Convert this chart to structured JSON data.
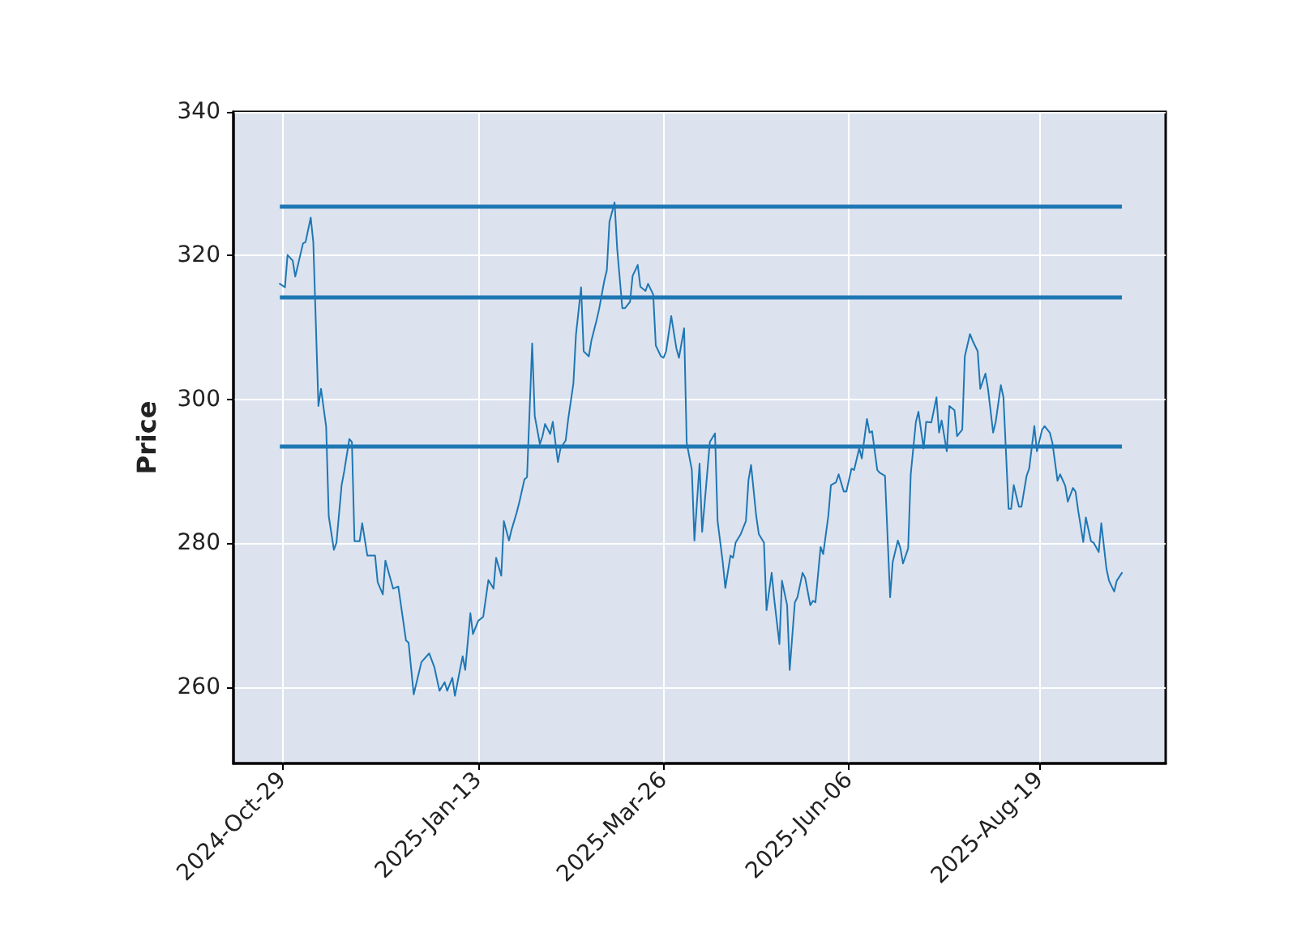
{
  "chart_data": {
    "type": "line",
    "ylabel": "Price",
    "grid": true,
    "marker": "none",
    "line_style": "solid",
    "xlim": [
      "2024-10-10",
      "2025-10-07"
    ],
    "ylim": [
      249.4,
      340
    ],
    "yticks": [
      260,
      280,
      300,
      320,
      340
    ],
    "xticks": [
      {
        "value": "2024-10-29",
        "label": "2024-Oct-29"
      },
      {
        "value": "2025-01-13",
        "label": "2025-Jan-13"
      },
      {
        "value": "2025-03-26",
        "label": "2025-Mar-26"
      },
      {
        "value": "2025-06-06",
        "label": "2025-Jun-06"
      },
      {
        "value": "2025-08-19",
        "label": "2025-Aug-19"
      }
    ],
    "ref_lines": [
      {
        "axis": "y",
        "value": 326.9,
        "color": "#1f77b4"
      },
      {
        "axis": "y",
        "value": 314.2,
        "color": "#1f77b4"
      },
      {
        "axis": "y",
        "value": 293.6,
        "color": "#1f77b4"
      }
    ],
    "series": [
      {
        "color": "#1f77b4",
        "x": [
          "2024-10-28",
          "2024-10-30",
          "2024-10-31",
          "2024-11-02",
          "2024-11-03",
          "2024-11-06",
          "2024-11-07",
          "2024-11-09",
          "2024-11-10",
          "2024-11-12",
          "2024-11-13",
          "2024-11-15",
          "2024-11-16",
          "2024-11-18",
          "2024-11-19",
          "2024-11-21",
          "2024-11-22",
          "2024-11-24",
          "2024-11-25",
          "2024-11-26",
          "2024-11-28",
          "2024-11-29",
          "2024-12-01",
          "2024-12-04",
          "2024-12-05",
          "2024-12-07",
          "2024-12-08",
          "2024-12-11",
          "2024-12-13",
          "2024-12-16",
          "2024-12-17",
          "2024-12-19",
          "2024-12-22",
          "2024-12-25",
          "2024-12-27",
          "2024-12-29",
          "2024-12-31",
          "2025-01-01",
          "2025-01-03",
          "2025-01-04",
          "2025-01-06",
          "2025-01-07",
          "2025-01-08",
          "2025-01-10",
          "2025-01-11",
          "2025-01-13",
          "2025-01-15",
          "2025-01-17",
          "2025-01-19",
          "2025-01-20",
          "2025-01-22",
          "2025-01-23",
          "2025-01-25",
          "2025-01-26",
          "2025-01-28",
          "2025-01-29",
          "2025-01-31",
          "2025-02-01",
          "2025-02-03",
          "2025-02-04",
          "2025-02-06",
          "2025-02-07",
          "2025-02-08",
          "2025-02-10",
          "2025-02-11",
          "2025-02-13",
          "2025-02-14",
          "2025-02-16",
          "2025-02-17",
          "2025-02-19",
          "2025-02-20",
          "2025-02-22",
          "2025-02-23",
          "2025-02-25",
          "2025-02-26",
          "2025-02-28",
          "2025-03-01",
          "2025-03-03",
          "2025-03-04",
          "2025-03-05",
          "2025-03-07",
          "2025-03-08",
          "2025-03-10",
          "2025-03-11",
          "2025-03-13",
          "2025-03-14",
          "2025-03-16",
          "2025-03-17",
          "2025-03-19",
          "2025-03-20",
          "2025-03-22",
          "2025-03-23",
          "2025-03-25",
          "2025-03-26",
          "2025-03-27",
          "2025-03-29",
          "2025-03-31",
          "2025-04-01",
          "2025-04-03",
          "2025-04-04",
          "2025-04-06",
          "2025-04-07",
          "2025-04-09",
          "2025-04-10",
          "2025-04-11",
          "2025-04-13",
          "2025-04-15",
          "2025-04-16",
          "2025-04-18",
          "2025-04-19",
          "2025-04-21",
          "2025-04-22",
          "2025-04-23",
          "2025-04-25",
          "2025-04-27",
          "2025-04-28",
          "2025-04-29",
          "2025-05-01",
          "2025-05-02",
          "2025-05-04",
          "2025-05-05",
          "2025-05-07",
          "2025-05-08",
          "2025-05-10",
          "2025-05-11",
          "2025-05-13",
          "2025-05-14",
          "2025-05-16",
          "2025-05-17",
          "2025-05-19",
          "2025-05-20",
          "2025-05-22",
          "2025-05-23",
          "2025-05-24",
          "2025-05-26",
          "2025-05-27",
          "2025-05-29",
          "2025-05-30",
          "2025-06-01",
          "2025-06-02",
          "2025-06-04",
          "2025-06-05",
          "2025-06-07",
          "2025-06-08",
          "2025-06-10",
          "2025-06-11",
          "2025-06-13",
          "2025-06-14",
          "2025-06-15",
          "2025-06-17",
          "2025-06-18",
          "2025-06-20",
          "2025-06-22",
          "2025-06-23",
          "2025-06-25",
          "2025-06-26",
          "2025-06-27",
          "2025-06-29",
          "2025-06-30",
          "2025-07-02",
          "2025-07-03",
          "2025-07-05",
          "2025-07-06",
          "2025-07-08",
          "2025-07-10",
          "2025-07-11",
          "2025-07-12",
          "2025-07-14",
          "2025-07-15",
          "2025-07-17",
          "2025-07-18",
          "2025-07-20",
          "2025-07-21",
          "2025-07-23",
          "2025-07-24",
          "2025-07-26",
          "2025-07-27",
          "2025-07-29",
          "2025-07-30",
          "2025-08-01",
          "2025-08-02",
          "2025-08-04",
          "2025-08-05",
          "2025-08-07",
          "2025-08-08",
          "2025-08-09",
          "2025-08-11",
          "2025-08-12",
          "2025-08-14",
          "2025-08-15",
          "2025-08-17",
          "2025-08-18",
          "2025-08-20",
          "2025-08-21",
          "2025-08-23",
          "2025-08-24",
          "2025-08-26",
          "2025-08-27",
          "2025-08-29",
          "2025-08-30",
          "2025-09-01",
          "2025-09-02",
          "2025-09-03",
          "2025-09-05",
          "2025-09-06",
          "2025-09-08",
          "2025-09-09",
          "2025-09-11",
          "2025-09-12",
          "2025-09-14",
          "2025-09-15",
          "2025-09-17",
          "2025-09-18",
          "2025-09-20"
        ],
        "values": [
          316.1,
          315.6,
          320.1,
          319.3,
          317.1,
          321.7,
          321.9,
          325.3,
          321.9,
          299.1,
          301.5,
          296.2,
          283.8,
          279.1,
          280.1,
          288.1,
          290.0,
          294.5,
          294.1,
          280.3,
          280.3,
          282.8,
          278.3,
          278.3,
          274.6,
          272.9,
          277.6,
          273.7,
          274.0,
          266.5,
          266.2,
          259.0,
          263.5,
          264.7,
          262.8,
          259.5,
          260.7,
          259.5,
          261.3,
          258.8,
          262.5,
          264.3,
          262.4,
          270.3,
          267.4,
          269.2,
          269.8,
          274.9,
          273.7,
          278.0,
          275.5,
          283.1,
          280.4,
          281.9,
          284.3,
          285.7,
          288.9,
          289.2,
          307.8,
          297.7,
          293.8,
          294.9,
          296.6,
          295.2,
          296.9,
          291.3,
          293.2,
          294.3,
          297.3,
          302.2,
          309.0,
          315.6,
          306.7,
          306.0,
          308.2,
          311.0,
          312.6,
          316.5,
          318.0,
          324.7,
          327.4,
          321.0,
          312.7,
          312.7,
          313.6,
          317.2,
          318.7,
          315.7,
          315.1,
          316.1,
          314.6,
          307.5,
          306.0,
          305.8,
          306.7,
          311.6,
          307.1,
          305.8,
          309.9,
          294.0,
          290.2,
          280.4,
          291.1,
          281.6,
          285.7,
          294.1,
          295.3,
          283.1,
          277.4,
          273.8,
          278.3,
          278.0,
          280.1,
          281.3,
          283.1,
          288.8,
          290.9,
          283.8,
          281.3,
          280.1,
          270.7,
          275.9,
          272.2,
          266.0,
          274.8,
          271.4,
          262.4,
          271.8,
          272.5,
          275.9,
          275.2,
          271.4,
          272.0,
          271.8,
          279.5,
          278.5,
          283.8,
          288.1,
          288.5,
          289.6,
          287.2,
          287.2,
          290.4,
          290.2,
          293.2,
          291.8,
          297.3,
          295.4,
          295.6,
          290.2,
          289.8,
          289.4,
          272.5,
          277.4,
          280.4,
          279.3,
          277.2,
          279.3,
          289.6,
          296.9,
          298.3,
          293.2,
          296.9,
          296.8,
          300.3,
          295.4,
          297.1,
          292.8,
          299.1,
          298.5,
          294.9,
          295.8,
          306.0,
          309.1,
          308.2,
          306.7,
          301.5,
          303.6,
          301.5,
          295.4,
          296.9,
          302.0,
          300.3,
          284.8,
          284.8,
          288.1,
          285.1,
          285.1,
          289.4,
          290.4,
          296.3,
          292.8,
          295.8,
          296.3,
          295.4,
          294.0,
          288.7,
          289.6,
          288.0,
          285.8,
          287.7,
          287.2,
          284.6,
          280.2,
          283.6,
          280.3,
          280.1,
          278.8,
          282.8,
          276.5,
          274.8,
          273.3,
          274.8,
          275.9
        ]
      }
    ]
  }
}
